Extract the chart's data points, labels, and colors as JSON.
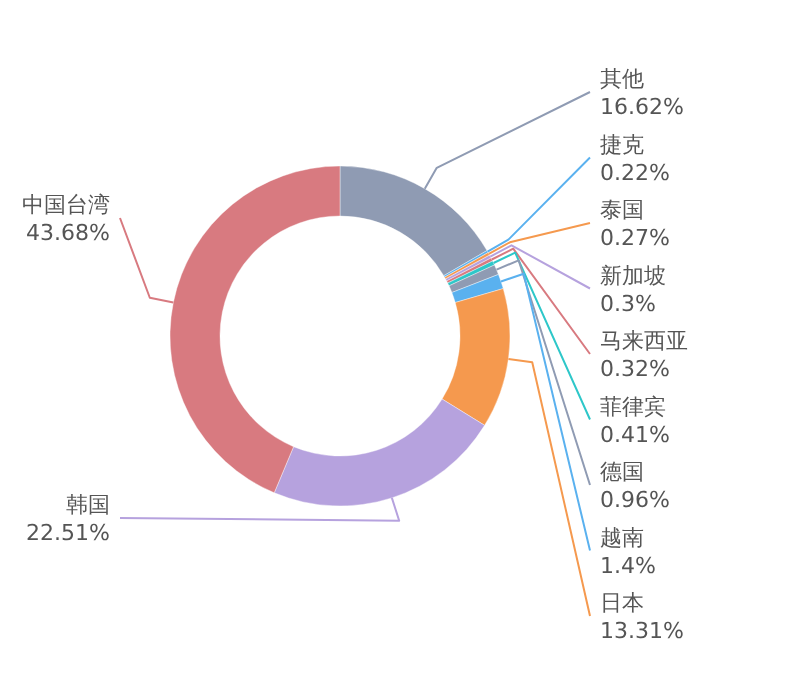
{
  "chart_data": {
    "type": "donut",
    "categories": [
      "其他",
      "捷克",
      "泰国",
      "新加坡",
      "马来西亚",
      "菲律宾",
      "德国",
      "越南",
      "日本",
      "韩国",
      "中国台湾"
    ],
    "values": [
      16.62,
      0.22,
      0.27,
      0.3,
      0.32,
      0.41,
      0.96,
      1.4,
      13.31,
      22.51,
      43.68
    ],
    "value_labels": [
      "16.62%",
      "0.22%",
      "0.27%",
      "0.3%",
      "0.32%",
      "0.41%",
      "0.96%",
      "1.4%",
      "13.31%",
      "22.51%",
      "43.68%"
    ],
    "colors": [
      "#8f9bb3",
      "#5ab1ef",
      "#f5994e",
      "#b6a2de",
      "#d87a80",
      "#2ec7c9",
      "#8f9bb3",
      "#5ab1ef",
      "#f5994e",
      "#b6a2de",
      "#d87a80"
    ]
  }
}
